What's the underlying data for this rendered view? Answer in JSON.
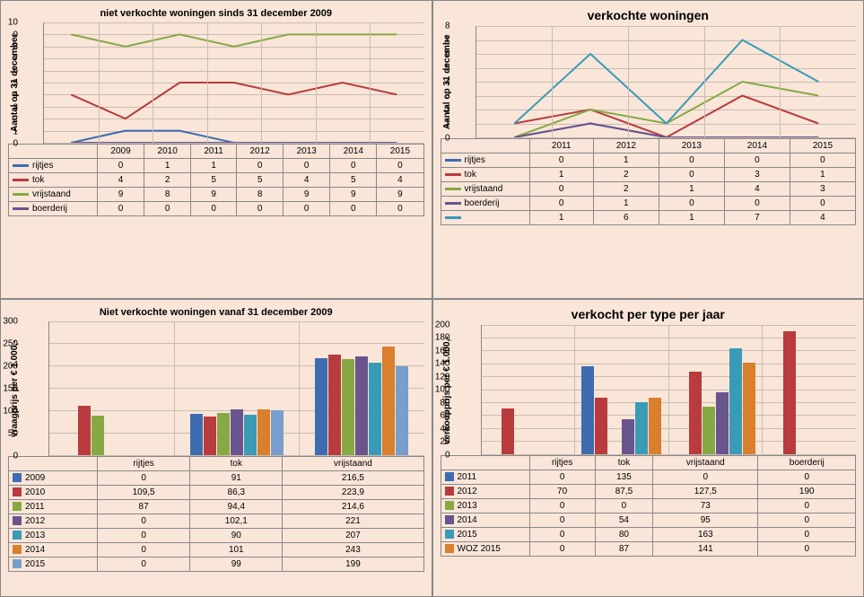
{
  "palette": {
    "blue": "#3d6db0",
    "red": "#b83b3d",
    "green": "#86a944",
    "purple": "#6a548e",
    "cyan": "#3a9bb7",
    "orange": "#d97f2d",
    "lightblue": "#7a9ecb"
  },
  "topLeft": {
    "title": "niet verkochte woningen sinds 31 december 2009",
    "ylabel": "Aantal op 31 december",
    "ylim": [
      0,
      10
    ],
    "ystep": 1,
    "categories": [
      "2009",
      "2010",
      "2011",
      "2012",
      "2013",
      "2014",
      "2015"
    ],
    "series": [
      {
        "name": "rijtjes",
        "color": "#3d6db0",
        "values": [
          0,
          1,
          1,
          0,
          0,
          0,
          0
        ]
      },
      {
        "name": "tok",
        "color": "#b83b3d",
        "values": [
          4,
          2,
          5,
          5,
          4,
          5,
          4
        ]
      },
      {
        "name": "vrijstaand",
        "color": "#86a944",
        "values": [
          9,
          8,
          9,
          8,
          9,
          9,
          9
        ]
      },
      {
        "name": "boerderij",
        "color": "#6a548e",
        "values": [
          0,
          0,
          0,
          0,
          0,
          0,
          0
        ]
      }
    ]
  },
  "topRight": {
    "title": "verkochte woningen",
    "ylabel": "Aantal op 31 decembe",
    "ylim": [
      0,
      8
    ],
    "ystep": 1,
    "categories": [
      "2011",
      "2012",
      "2013",
      "2014",
      "2015"
    ],
    "series": [
      {
        "name": "rijtjes",
        "color": "#3d6db0",
        "values": [
          0,
          1,
          0,
          0,
          0
        ]
      },
      {
        "name": "tok",
        "color": "#b83b3d",
        "values": [
          1,
          2,
          0,
          3,
          1
        ]
      },
      {
        "name": "vrijstaand",
        "color": "#86a944",
        "values": [
          0,
          2,
          1,
          4,
          3
        ]
      },
      {
        "name": "boerderij",
        "color": "#6a548e",
        "values": [
          0,
          1,
          0,
          0,
          0
        ]
      },
      {
        "name": "",
        "color": "#3a9bb7",
        "values": [
          1,
          6,
          1,
          7,
          4
        ]
      }
    ]
  },
  "bottomLeft": {
    "title": "Niet verkochte woningen vanaf 31 december 2009",
    "ylabel": "vraagprijs per € 1.000,-",
    "ylim": [
      0,
      300
    ],
    "ystep": 50,
    "categories": [
      "rijtjes",
      "tok",
      "vrijstaand"
    ],
    "series": [
      {
        "name": "2009",
        "color": "#3d6db0",
        "values": [
          0,
          91,
          216.5
        ],
        "display": [
          "0",
          "91",
          "216,5"
        ]
      },
      {
        "name": "2010",
        "color": "#b83b3d",
        "values": [
          109.5,
          86.3,
          223.9
        ],
        "display": [
          "109,5",
          "86,3",
          "223,9"
        ]
      },
      {
        "name": "2011",
        "color": "#86a944",
        "values": [
          87,
          94.4,
          214.6
        ],
        "display": [
          "87",
          "94,4",
          "214,6"
        ]
      },
      {
        "name": "2012",
        "color": "#6a548e",
        "values": [
          0,
          102.1,
          221
        ],
        "display": [
          "0",
          "102,1",
          "221"
        ]
      },
      {
        "name": "2013",
        "color": "#3a9bb7",
        "values": [
          0,
          90,
          207
        ],
        "display": [
          "0",
          "90",
          "207"
        ]
      },
      {
        "name": "2014",
        "color": "#d97f2d",
        "values": [
          0,
          101,
          243
        ],
        "display": [
          "0",
          "101",
          "243"
        ]
      },
      {
        "name": "2015",
        "color": "#7a9ecb",
        "values": [
          0,
          99,
          199
        ],
        "display": [
          "0",
          "99",
          "199"
        ]
      }
    ]
  },
  "bottomRight": {
    "title": "verkocht per type per jaar",
    "ylabel": "verkoopprijs per € 1.000,-",
    "ylim": [
      0,
      200
    ],
    "ystep": 20,
    "categories": [
      "rijtjes",
      "tok",
      "vrijstaand",
      "boerderij"
    ],
    "series": [
      {
        "name": "2011",
        "color": "#3d6db0",
        "values": [
          0,
          135,
          0,
          0
        ],
        "display": [
          "0",
          "135",
          "0",
          "0"
        ]
      },
      {
        "name": "2012",
        "color": "#b83b3d",
        "values": [
          70,
          87.5,
          127.5,
          190
        ],
        "display": [
          "70",
          "87,5",
          "127,5",
          "190"
        ]
      },
      {
        "name": "2013",
        "color": "#86a944",
        "values": [
          0,
          0,
          73,
          0
        ],
        "display": [
          "0",
          "0",
          "73",
          "0"
        ]
      },
      {
        "name": "2014",
        "color": "#6a548e",
        "values": [
          0,
          54,
          95,
          0
        ],
        "display": [
          "0",
          "54",
          "95",
          "0"
        ]
      },
      {
        "name": "2015",
        "color": "#3a9bb7",
        "values": [
          0,
          80,
          163,
          0
        ],
        "display": [
          "0",
          "80",
          "163",
          "0"
        ]
      },
      {
        "name": "WOZ 2015",
        "color": "#d97f2d",
        "values": [
          0,
          87,
          141,
          0
        ],
        "display": [
          "0",
          "87",
          "141",
          "0"
        ]
      }
    ]
  }
}
